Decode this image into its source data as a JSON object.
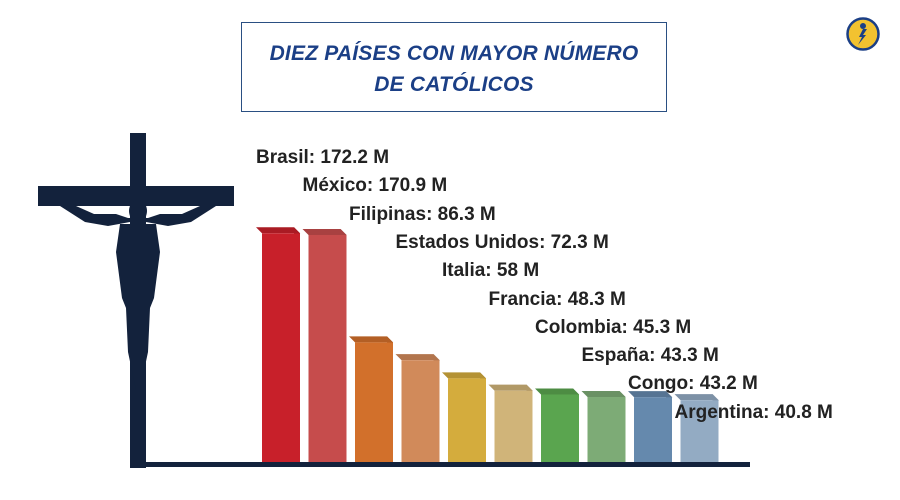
{
  "title": {
    "line1": "DIEZ PAÍSES CON MAYOR NÚMERO",
    "line2": "DE CATÓLICOS"
  },
  "icons": {
    "crucifix": "crucifix-icon",
    "logo": "logo-icon"
  },
  "chart_data": {
    "type": "bar",
    "title": "DIEZ PAÍSES CON MAYOR NÚMERO DE CATÓLICOS",
    "categories": [
      "Brasil",
      "México",
      "Filipinas",
      "Estados Unidos",
      "Italia",
      "Francia",
      "Colombia",
      "España",
      "Congo",
      "Argentina"
    ],
    "values": [
      172.2,
      170.9,
      86.3,
      72.3,
      58,
      48.3,
      45.3,
      43.3,
      43.2,
      40.8
    ],
    "labels": [
      "Brasil: 172.2 M",
      "México: 170.9 M",
      "Filipinas: 86.3 M",
      "Estados Unidos: 72.3 M",
      "Italia: 58 M",
      "Francia: 48.3 M",
      "Colombia: 45.3 M",
      "España: 43.3 M",
      "Congo: 43.2 M",
      "Argentina: 40.8 M"
    ],
    "colors": [
      "#c8202a",
      "#c64c4c",
      "#d2702b",
      "#d18a5a",
      "#d4ac3d",
      "#d0b479",
      "#5aa54f",
      "#7dab76",
      "#6589ad",
      "#93abc3"
    ],
    "grid": false,
    "legend": "none"
  }
}
